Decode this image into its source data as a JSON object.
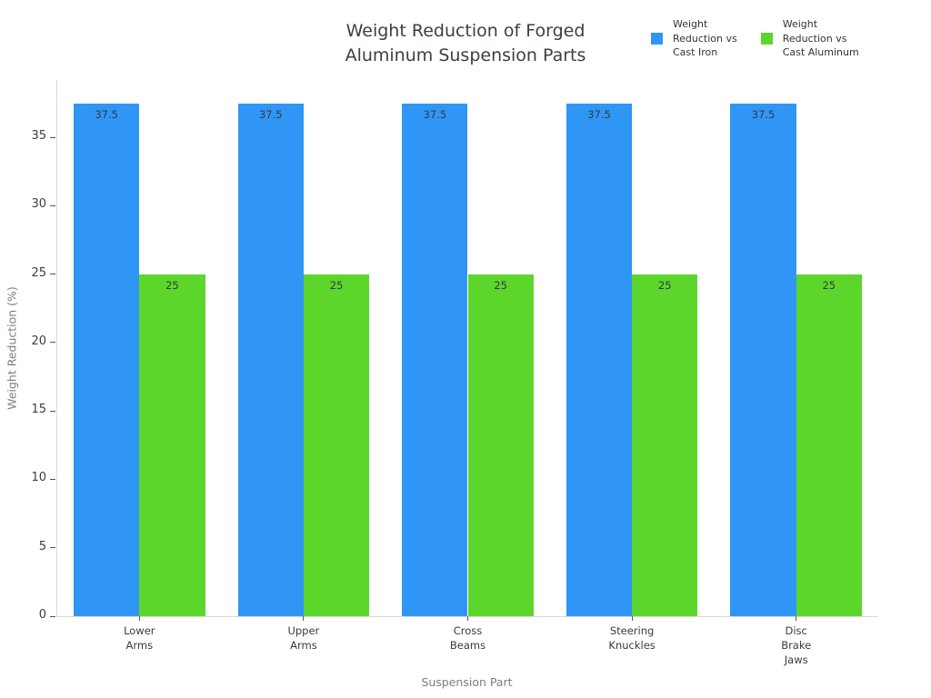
{
  "chart_data": {
    "type": "bar",
    "title": "Weight Reduction of Forged Aluminum Suspension Parts",
    "title_lines": [
      "Weight Reduction of Forged",
      "Aluminum Suspension Parts"
    ],
    "xlabel": "Suspension Part",
    "ylabel": "Weight Reduction (%)",
    "categories": [
      "Lower Arms",
      "Upper Arms",
      "Cross Beams",
      "Steering Knuckles",
      "Disc Brake Jaws"
    ],
    "category_lines": [
      [
        "Lower",
        "Arms"
      ],
      [
        "Upper",
        "Arms"
      ],
      [
        "Cross",
        "Beams"
      ],
      [
        "Steering",
        "Knuckles"
      ],
      [
        "Disc",
        "Brake",
        "Jaws"
      ]
    ],
    "series": [
      {
        "name": "Weight Reduction vs Cast Iron",
        "label_lines": [
          "Weight",
          "Reduction vs",
          "Cast Iron"
        ],
        "color": "#3096f5",
        "values": [
          37.5,
          37.5,
          37.5,
          37.5,
          37.5
        ]
      },
      {
        "name": "Weight Reduction vs Cast Aluminum",
        "label_lines": [
          "Weight",
          "Reduction vs",
          "Cast Aluminum"
        ],
        "color": "#5dd62c",
        "values": [
          25,
          25,
          25,
          25,
          25
        ]
      }
    ],
    "yticks": [
      0,
      5,
      10,
      15,
      20,
      25,
      30,
      35
    ],
    "ylim": [
      0,
      39.2
    ],
    "grid": false,
    "legend_position": "top-right",
    "bar_value_labels": true,
    "colors": {
      "axis_line": "#d9d9d9",
      "tick": "#555555",
      "tick_label": "#3d3d3d",
      "title_text": "#3b4046",
      "axis_title_text": "#7c7c84",
      "bar_label_text": "#333940"
    }
  }
}
